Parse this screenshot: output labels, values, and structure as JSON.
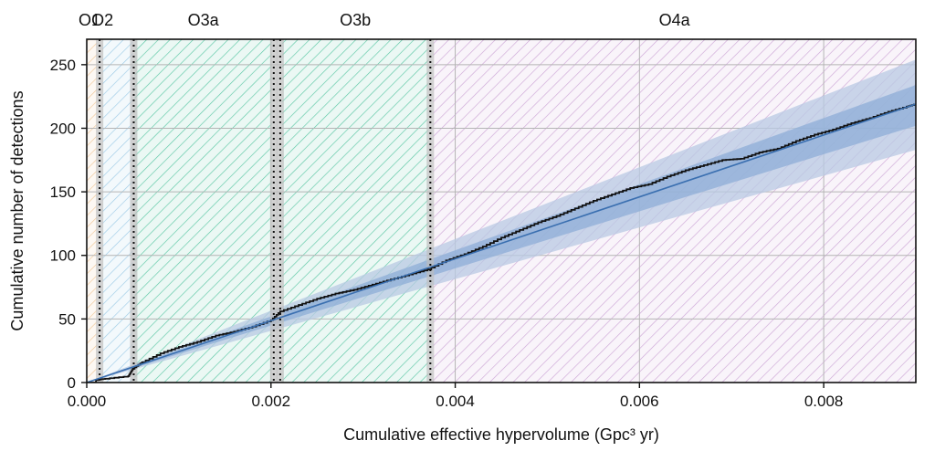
{
  "chart_data": {
    "type": "line",
    "title": "",
    "xlabel": "Cumulative effective hypervolume (Gpc³ yr)",
    "ylabel": "Cumulative number of detections",
    "xlim": [
      0,
      0.009
    ],
    "ylim": [
      0,
      270
    ],
    "x_ticks": [
      0,
      0.002,
      0.004,
      0.006,
      0.008
    ],
    "x_tick_labels": [
      "0.000",
      "0.002",
      "0.004",
      "0.006",
      "0.008"
    ],
    "y_ticks": [
      0,
      50,
      100,
      150,
      200,
      250
    ],
    "y_tick_labels": [
      "0",
      "50",
      "100",
      "150",
      "200",
      "250"
    ],
    "grid": true,
    "observing_runs": [
      {
        "name": "O1",
        "x_start": 0.0,
        "x_end": 0.00011,
        "color": "#f0c89a"
      },
      {
        "name": "O2",
        "x_start": 0.00017,
        "x_end": 0.0005,
        "color": "#9ecbe6"
      },
      {
        "name": "O3a",
        "x_start": 0.00052,
        "x_end": 0.00201,
        "color": "#5cc7a5"
      },
      {
        "name": "O3b",
        "x_start": 0.00212,
        "x_end": 0.00371,
        "color": "#5cc7a5"
      },
      {
        "name": "O4a",
        "x_start": 0.00376,
        "x_end": 0.009,
        "color": "#cda6d6"
      }
    ],
    "run_boundaries": [
      0.00014,
      0.00051,
      0.00203,
      0.0021,
      0.00373
    ],
    "expected_rate_slope": 24300,
    "bands": [
      {
        "name": "outer",
        "x": [
          0,
          0.009
        ],
        "upper": [
          0,
          254
        ],
        "lower": [
          0,
          183
        ],
        "color": "#b8c9e3"
      },
      {
        "name": "inner",
        "x": [
          0,
          0.009
        ],
        "upper": [
          0,
          234
        ],
        "lower": [
          0,
          202
        ],
        "color": "#8eaed7"
      }
    ],
    "series": [
      {
        "color": "#111111",
        "x": [
          0,
          0.0001,
          0.0002,
          0.00045,
          0.0005,
          0.0006,
          0.0008,
          0.001,
          0.0012,
          0.0014,
          0.0016,
          0.0018,
          0.002,
          0.0021,
          0.0023,
          0.0025,
          0.0027,
          0.0029,
          0.0031,
          0.0033,
          0.0035,
          0.0037,
          0.0039,
          0.0041,
          0.0043,
          0.0045,
          0.0047,
          0.0049,
          0.0051,
          0.0053,
          0.0055,
          0.0057,
          0.0059,
          0.0061,
          0.0063,
          0.0065,
          0.0067,
          0.0069,
          0.0071,
          0.0073,
          0.0075,
          0.0077,
          0.0079,
          0.0081,
          0.0083,
          0.0085,
          0.0087,
          0.0089,
          0.009
        ],
        "y": [
          0,
          2,
          3,
          5,
          11,
          16,
          23,
          28,
          32,
          37,
          40,
          44,
          49,
          56,
          61,
          66,
          70,
          73,
          77,
          81,
          85,
          89,
          96,
          101,
          107,
          114,
          120,
          126,
          131,
          137,
          143,
          148,
          153,
          156,
          162,
          167,
          171,
          175,
          176,
          181,
          184,
          190,
          195,
          199,
          204,
          208,
          213,
          217,
          219
        ]
      },
      {
        "color": "#3a6fb0",
        "x": [
          0,
          0.009
        ],
        "y": [
          0,
          219
        ]
      }
    ]
  }
}
